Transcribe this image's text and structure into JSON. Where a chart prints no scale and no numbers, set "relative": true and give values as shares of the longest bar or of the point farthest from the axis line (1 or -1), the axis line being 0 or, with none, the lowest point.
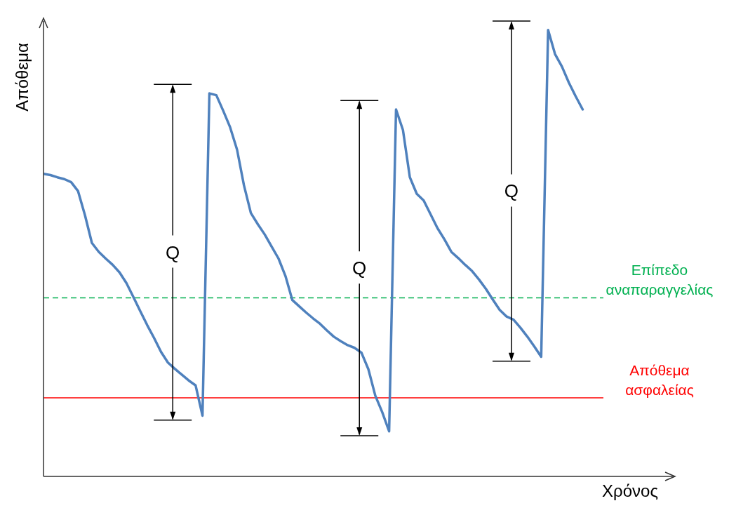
{
  "chart_data": {
    "type": "line",
    "xlabel": "Χρόνος",
    "ylabel": "Απόθεμα",
    "relative": true,
    "categories": [
      null,
      null,
      null,
      null,
      null,
      null,
      null,
      null,
      null,
      null,
      null,
      null,
      null,
      null,
      null,
      null,
      null,
      null,
      null,
      null,
      null,
      null,
      null,
      null,
      null,
      null,
      null,
      null,
      null,
      null,
      null,
      null,
      null,
      null,
      null,
      null,
      null,
      null,
      null,
      null,
      null,
      null,
      null,
      null,
      null,
      null,
      null,
      null,
      null,
      null,
      null,
      null,
      null,
      null,
      null,
      null,
      null,
      null,
      null,
      null,
      null,
      null,
      null,
      null,
      null,
      null,
      null,
      null,
      null,
      null,
      null,
      null,
      null,
      null,
      null,
      null,
      null,
      null,
      null,
      null,
      null,
      null
    ],
    "series": [
      {
        "color": "#4f81bd",
        "values": [
          0.678,
          0.675,
          0.67,
          0.666,
          0.659,
          0.639,
          0.585,
          0.523,
          0.503,
          0.488,
          0.474,
          0.457,
          0.433,
          0.402,
          0.37,
          0.339,
          0.31,
          0.279,
          0.255,
          0.241,
          0.228,
          0.215,
          0.204,
          0.136,
          0.858,
          0.854,
          0.819,
          0.782,
          0.732,
          0.652,
          0.59,
          0.565,
          0.542,
          0.515,
          0.488,
          0.449,
          0.395,
          0.381,
          0.367,
          0.354,
          0.342,
          0.327,
          0.313,
          0.303,
          0.294,
          0.288,
          0.277,
          0.24,
          0.181,
          0.144,
          0.101,
          0.822,
          0.776,
          0.67,
          0.633,
          0.618,
          0.587,
          0.556,
          0.531,
          0.503,
          0.489,
          0.474,
          0.46,
          0.441,
          0.42,
          0.396,
          0.373,
          0.358,
          0.351,
          0.333,
          0.313,
          0.291,
          0.268,
          1,
          0.946,
          0.918,
          0.882,
          0.851,
          0.822,
          null,
          null,
          null
        ]
      }
    ],
    "ref_lines": [
      {
        "axis": "y",
        "value": 0.4,
        "label": "Επίπεδο αναπαραγγελίας",
        "color": "#00b050",
        "line_style": "dashed"
      },
      {
        "axis": "y",
        "value": 0.176,
        "label": "Απόθεμα ασφαλείας",
        "color": "#ff0000",
        "line_style": "solid"
      }
    ],
    "annotations": [
      "Q",
      "Q",
      "Q"
    ]
  }
}
